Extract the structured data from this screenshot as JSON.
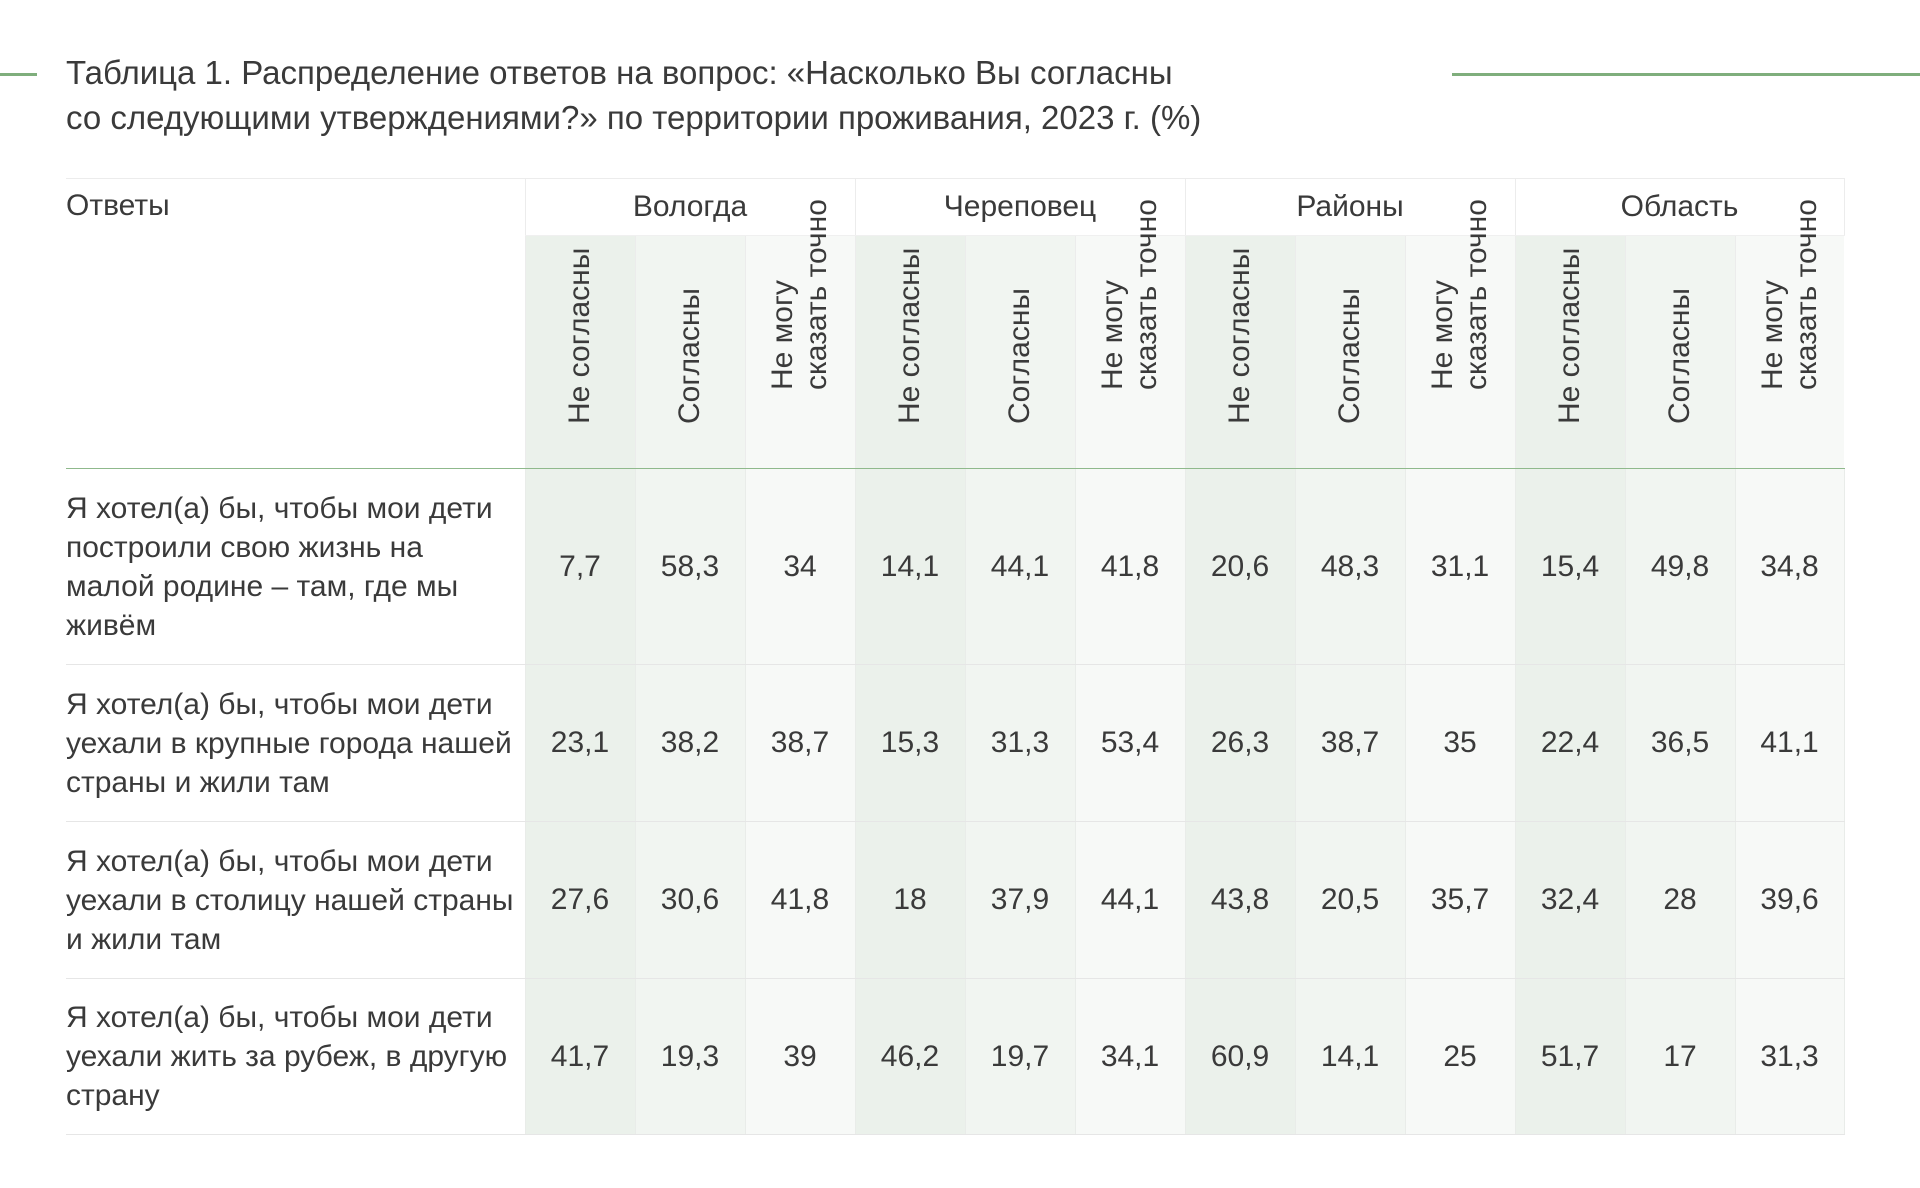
{
  "title": {
    "line1": "Таблица 1. Распределение ответов на вопрос: «Насколько Вы согласны",
    "line2": "со следующими утверждениями?» по территории проживания, 2023 г. (%)"
  },
  "header": {
    "answers": "Ответы",
    "regions": [
      "Вологда",
      "Череповец",
      "Районы",
      "Область"
    ],
    "sub": {
      "disagree": "Не согласны",
      "agree": "Согласны",
      "unsure_line1": "Не могу",
      "unsure_line2": "сказать точно"
    }
  },
  "rows": [
    {
      "answer": "Я хотел(а) бы, чтобы мои дети построили свою жизнь на малой родине – там, где мы живём",
      "values": [
        "7,7",
        "58,3",
        "34",
        "14,1",
        "44,1",
        "41,8",
        "20,6",
        "48,3",
        "31,1",
        "15,4",
        "49,8",
        "34,8"
      ]
    },
    {
      "answer": "Я хотел(а) бы, чтобы мои дети уехали в крупные города нашей страны и жили там",
      "values": [
        "23,1",
        "38,2",
        "38,7",
        "15,3",
        "31,3",
        "53,4",
        "26,3",
        "38,7",
        "35",
        "22,4",
        "36,5",
        "41,1"
      ]
    },
    {
      "answer": "Я хотел(а) бы, чтобы мои дети уехали в столицу нашей страны и жили там",
      "values": [
        "27,6",
        "30,6",
        "41,8",
        "18",
        "37,9",
        "44,1",
        "43,8",
        "20,5",
        "35,7",
        "32,4",
        "28",
        "39,6"
      ]
    },
    {
      "answer": "Я хотел(а) бы, чтобы мои дети уехали жить за рубеж, в другую страну",
      "values": [
        "41,7",
        "19,3",
        "39",
        "46,2",
        "19,7",
        "34,1",
        "60,9",
        "14,1",
        "25",
        "51,7",
        "17",
        "31,3"
      ]
    }
  ],
  "colors": {
    "accent_rule": "#7fae7c",
    "col_disagree": "#ebf1eb",
    "col_agree": "#f1f5f1",
    "col_unsure": "#f7f9f7"
  }
}
